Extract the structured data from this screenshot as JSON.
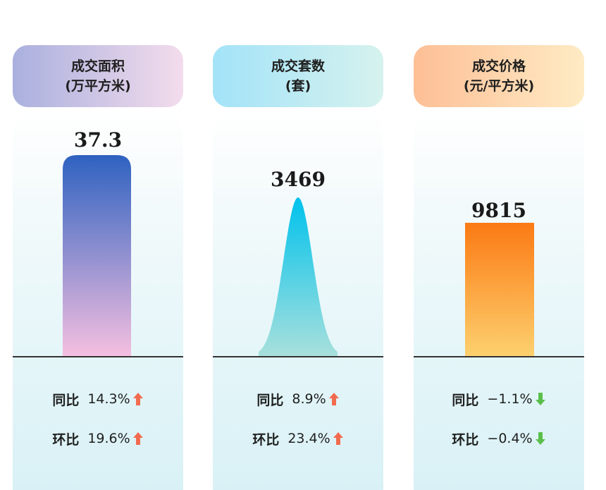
{
  "chart_data": [
    {
      "type": "bar",
      "title": "成交面积",
      "unit": "(万平方米)",
      "value": 37.3,
      "value_label": "37.3",
      "stats": [
        {
          "label": "同比",
          "value": "14.3%",
          "direction": "up"
        },
        {
          "label": "环比",
          "value": "19.6%",
          "direction": "up"
        }
      ]
    },
    {
      "type": "area",
      "title": "成交套数",
      "unit": "(套)",
      "value": 3469,
      "value_label": "3469",
      "stats": [
        {
          "label": "同比",
          "value": "8.9%",
          "direction": "up"
        },
        {
          "label": "环比",
          "value": "23.4%",
          "direction": "up"
        }
      ]
    },
    {
      "type": "bar",
      "title": "成交价格",
      "unit": "(元/平方米)",
      "value": 9815,
      "value_label": "9815",
      "stats": [
        {
          "label": "同比",
          "value": "−1.1%",
          "direction": "down"
        },
        {
          "label": "环比",
          "value": "−0.4%",
          "direction": "down"
        }
      ]
    }
  ],
  "colors": {
    "up_arrow": "#f26b4f",
    "down_arrow": "#5bbf4b",
    "bar1_top": "#2e62c0",
    "bar1_bottom": "#f5bfe0",
    "peak_top": "#00c2ec",
    "peak_bottom": "#a8e0dc",
    "bar3_top": "#fb7a14",
    "bar3_bottom": "#fdd06e"
  },
  "icons": {
    "up": "arrow-up-icon",
    "down": "arrow-down-icon"
  }
}
